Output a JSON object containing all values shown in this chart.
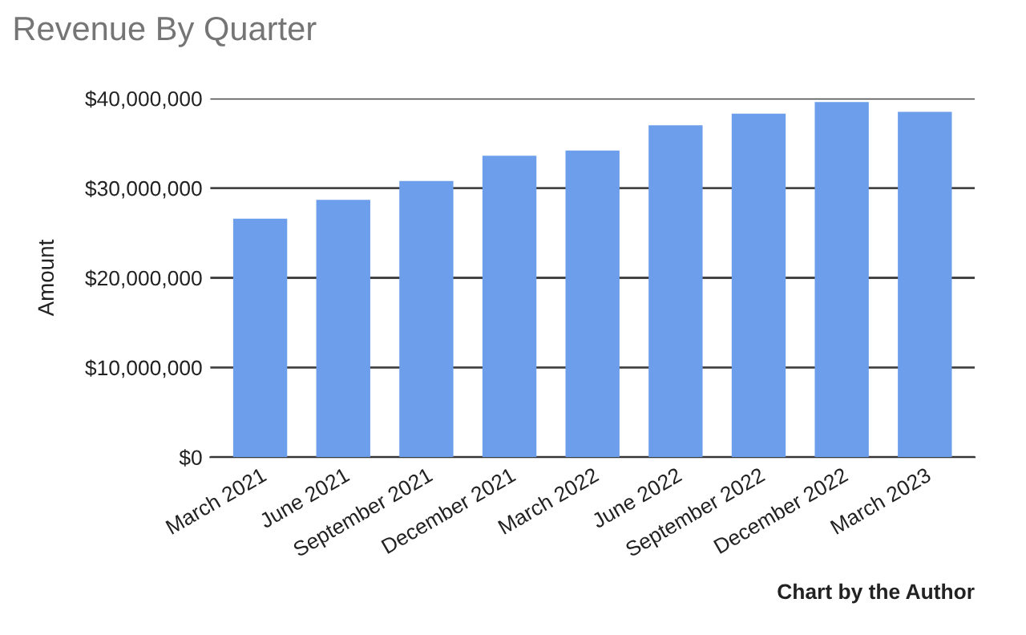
{
  "chart_data": {
    "type": "bar",
    "title": "Revenue By Quarter",
    "ylabel": "Amount",
    "categories": [
      "March 2021",
      "June 2021",
      "September 2021",
      "December 2021",
      "March 2022",
      "June 2022",
      "September 2022",
      "December 2022",
      "March 2023"
    ],
    "values": [
      26600000.0,
      28700000.0,
      30800000.0,
      33600000.0,
      34200000.0,
      37000000.0,
      38300000.0,
      39600000.0,
      38500000.0
    ],
    "color": "#6d9eeb",
    "ylim": [
      0,
      40000000
    ],
    "yticks": [
      {
        "value": 0,
        "label": "$0"
      },
      {
        "value": 10000000,
        "label": "$10,000,000"
      },
      {
        "value": 20000000,
        "label": "$20,000,000"
      },
      {
        "value": 30000000,
        "label": "$30,000,000"
      },
      {
        "value": 40000000,
        "label": "$40,000,000"
      }
    ],
    "grid": "y",
    "annotations": [
      "Chart by the Author"
    ]
  }
}
